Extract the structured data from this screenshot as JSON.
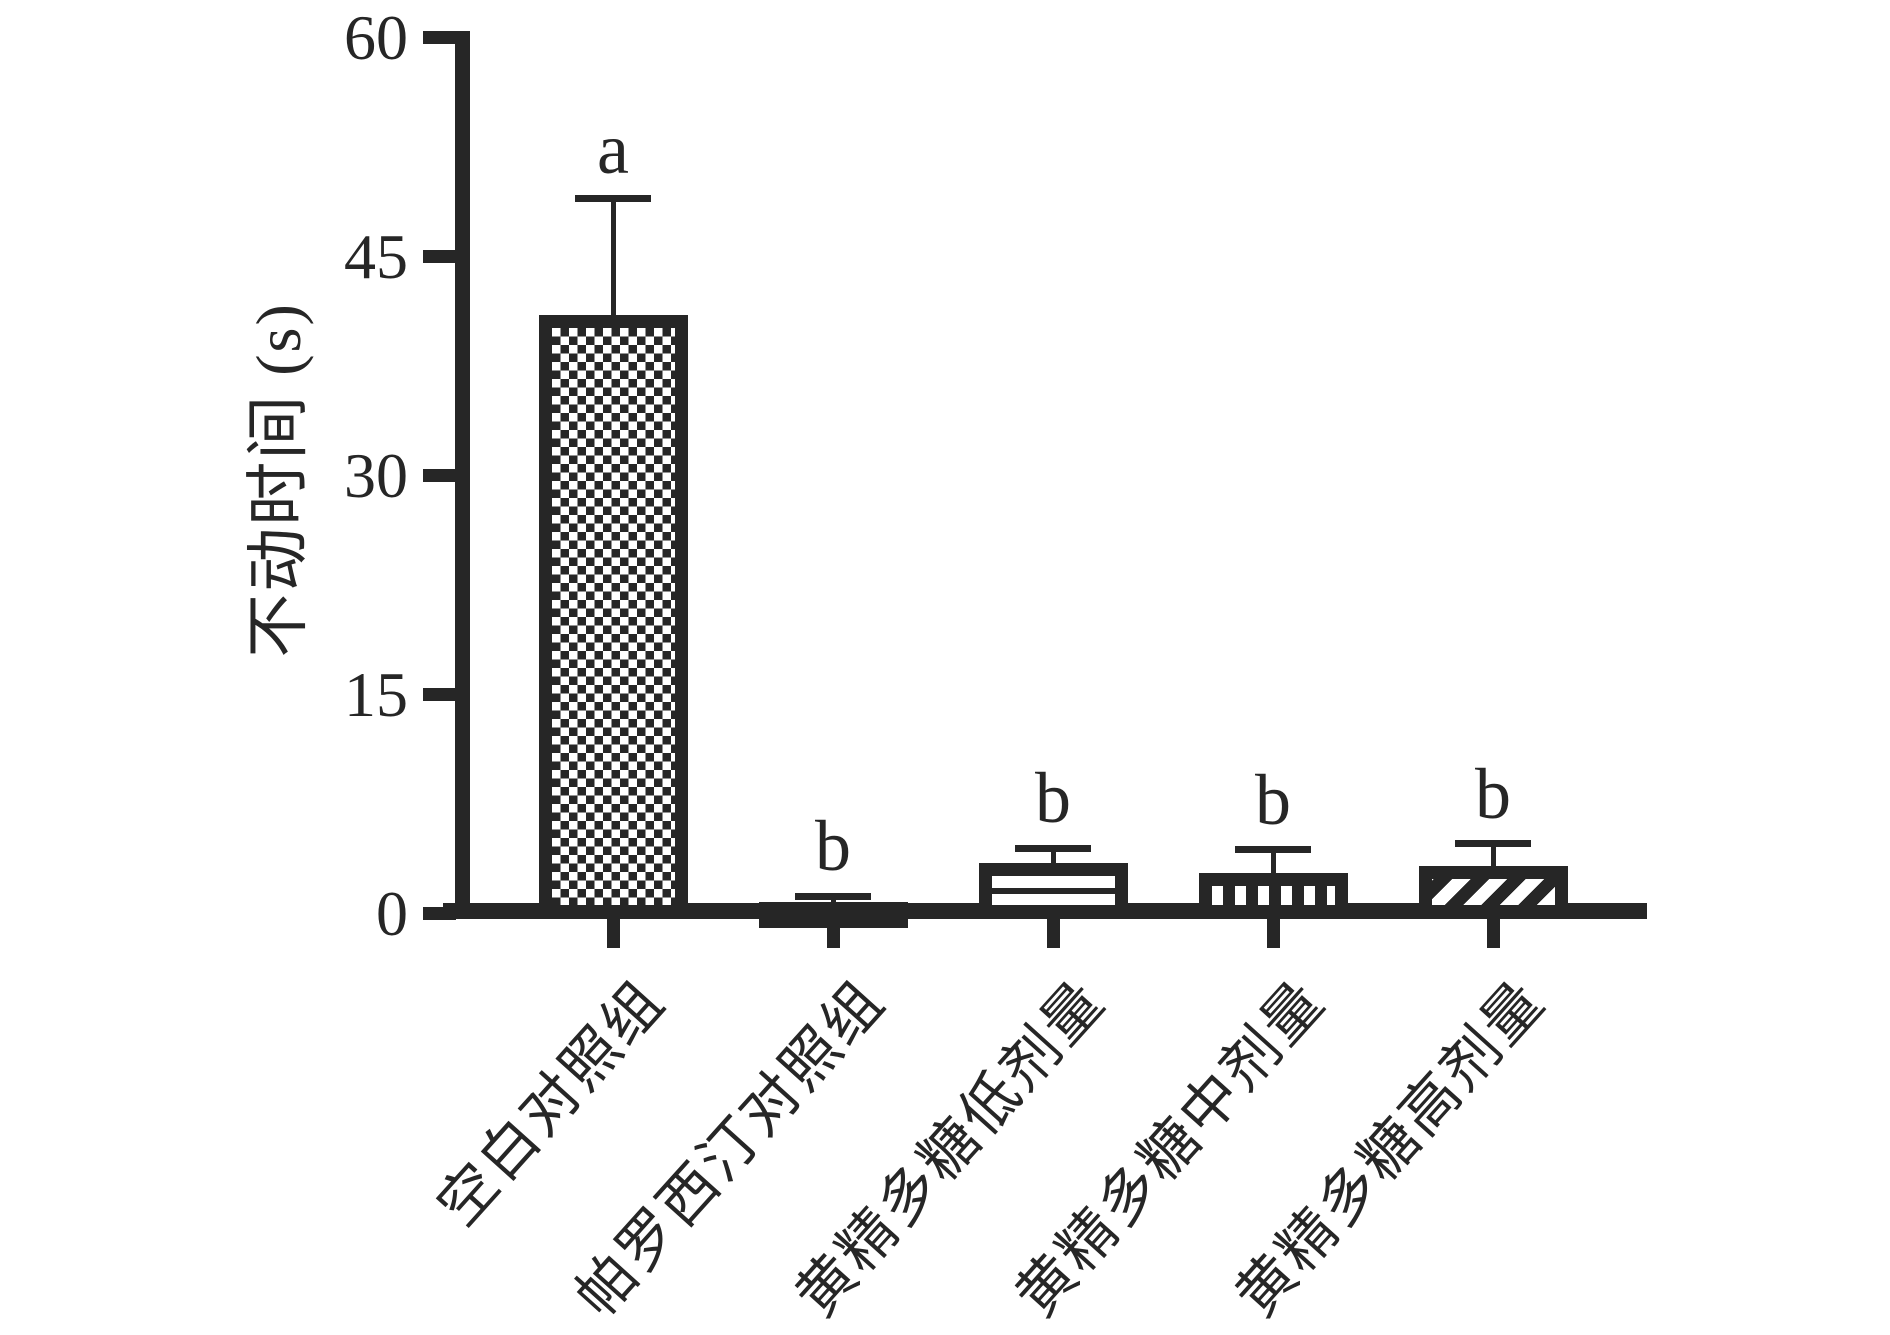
{
  "figure": {
    "background_color": "#ffffff",
    "ink_color": "#262626",
    "title": ""
  },
  "chart_data": {
    "type": "bar",
    "title": "",
    "xlabel": "",
    "ylabel": "不动时间 (s)",
    "ylim": [
      0,
      60
    ],
    "yticks": [
      0,
      15,
      30,
      45,
      60
    ],
    "ytick_labels_top_to_bottom": [
      "60",
      "45",
      "30",
      "15",
      "0"
    ],
    "grid": false,
    "legend": "none",
    "categories": [
      "空白对照组",
      "帕罗西汀对照组",
      "黄精多糖低剂量",
      "黄精多糖中剂量",
      "黄精多糖高剂量"
    ],
    "values": [
      41,
      0.8,
      3.5,
      2.8,
      3.3
    ],
    "errors_sd_upper": [
      8,
      0.4,
      1.0,
      1.6,
      1.5
    ],
    "error_bar_tops": [
      49,
      1.2,
      4.5,
      4.4,
      4.8
    ],
    "sig_labels": [
      "a",
      "b",
      "b",
      "b",
      "b"
    ],
    "bar_patterns": [
      "checkerboard",
      "solid",
      "horizontal-lines",
      "vertical-lines",
      "diagonal-lines"
    ],
    "bar_fill_color": "#ffffff",
    "bar_edge_color": "#262626"
  }
}
